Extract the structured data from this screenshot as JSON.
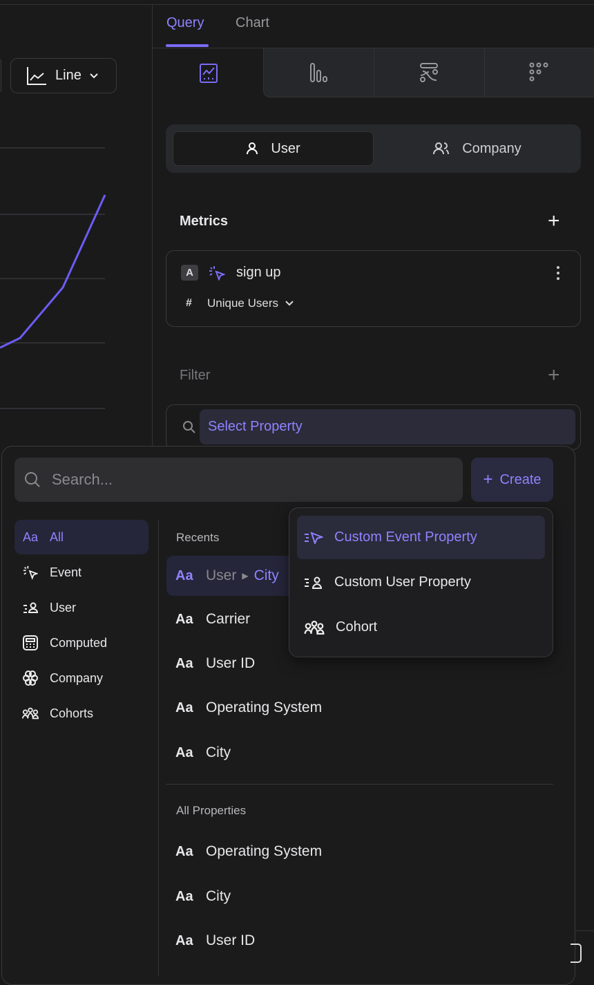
{
  "colors": {
    "accent": "#7b6cf6",
    "background": "#1a1a1b"
  },
  "chart_toolbar": {
    "chart_type": "Line",
    "icon": "line-chart-icon"
  },
  "tabs": [
    {
      "label": "Query",
      "active": true
    },
    {
      "label": "Chart",
      "active": false
    }
  ],
  "chart_types": [
    {
      "icon": "trend-chart-icon",
      "active": true
    },
    {
      "icon": "bar-chart-icon"
    },
    {
      "icon": "flow-chart-icon"
    },
    {
      "icon": "grid-dots-icon"
    }
  ],
  "entity": {
    "user": "User",
    "company": "Company",
    "selected": "User"
  },
  "metrics": {
    "title": "Metrics",
    "items": [
      {
        "badge": "A",
        "event": "sign up",
        "aggregation_symbol": "#",
        "aggregation": "Unique Users"
      }
    ]
  },
  "filter": {
    "title": "Filter",
    "select_placeholder": "Select Property"
  },
  "picker": {
    "search_placeholder": "Search...",
    "create_label": "Create",
    "categories": [
      {
        "label": "All",
        "icon": "text-aa-icon",
        "glyph": "Aa",
        "active": true
      },
      {
        "label": "Event",
        "icon": "event-click-icon"
      },
      {
        "label": "User",
        "icon": "user-list-icon"
      },
      {
        "label": "Computed",
        "icon": "calculator-icon"
      },
      {
        "label": "Company",
        "icon": "company-icon"
      },
      {
        "label": "Cohorts",
        "icon": "cohorts-icon"
      }
    ],
    "recents_label": "Recents",
    "recents": [
      {
        "prefix": "User",
        "label": "City",
        "highlighted": true
      },
      {
        "label": "Carrier"
      },
      {
        "label": "User ID"
      },
      {
        "label": "Operating System"
      },
      {
        "label": "City"
      }
    ],
    "all_label": "All Properties",
    "all": [
      {
        "label": "Operating System"
      },
      {
        "label": "City"
      },
      {
        "label": "User ID"
      }
    ],
    "aa": "Aa"
  },
  "create_menu": [
    {
      "label": "Custom Event Property",
      "icon": "custom-event-icon",
      "highlighted": true
    },
    {
      "label": "Custom User Property",
      "icon": "custom-user-icon"
    },
    {
      "label": "Cohort",
      "icon": "cohort-icon"
    }
  ]
}
